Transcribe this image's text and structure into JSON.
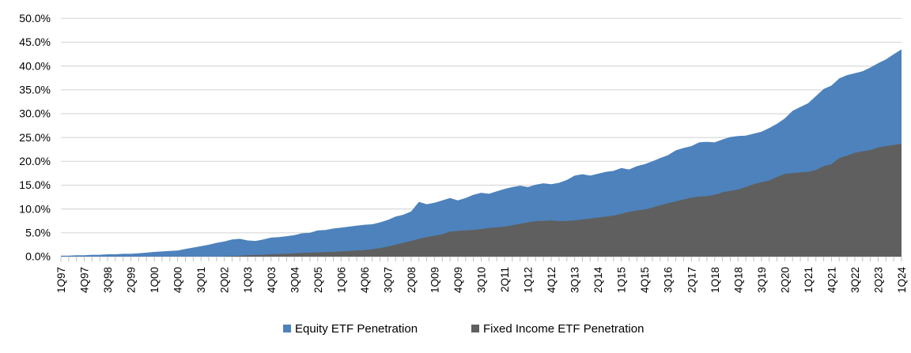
{
  "chart_data": {
    "type": "area",
    "overlay": true,
    "title": "",
    "xlabel": "",
    "ylabel": "",
    "legend_position": "bottom",
    "grid": true,
    "y_axis": {
      "min": 0,
      "max": 50,
      "step": 5,
      "tick_labels_top_down": [
        "50.0%",
        "45.0%",
        "40.0%",
        "35.0%",
        "30.0%",
        "25.0%",
        "20.0%",
        "15.0%",
        "10.0%",
        "5.0%",
        "0.0%"
      ]
    },
    "x_tick_labels": [
      "1Q97",
      "4Q97",
      "3Q98",
      "2Q99",
      "1Q00",
      "4Q00",
      "3Q01",
      "2Q02",
      "1Q03",
      "4Q03",
      "3Q04",
      "2Q05",
      "1Q06",
      "4Q06",
      "3Q07",
      "2Q08",
      "1Q09",
      "4Q09",
      "3Q10",
      "2Q11",
      "1Q12",
      "4Q12",
      "3Q13",
      "2Q14",
      "1Q15",
      "4Q15",
      "3Q16",
      "2Q17",
      "1Q18",
      "4Q18",
      "3Q19",
      "2Q20",
      "1Q21",
      "4Q21",
      "3Q22",
      "2Q23",
      "1Q24"
    ],
    "x_label_every_n": 3,
    "categories": [
      "1Q97",
      "2Q97",
      "3Q97",
      "4Q97",
      "1Q98",
      "2Q98",
      "3Q98",
      "4Q98",
      "1Q99",
      "2Q99",
      "3Q99",
      "4Q99",
      "1Q00",
      "2Q00",
      "3Q00",
      "4Q00",
      "1Q01",
      "2Q01",
      "3Q01",
      "4Q01",
      "1Q02",
      "2Q02",
      "3Q02",
      "4Q02",
      "1Q03",
      "2Q03",
      "3Q03",
      "4Q03",
      "1Q04",
      "2Q04",
      "3Q04",
      "4Q04",
      "1Q05",
      "2Q05",
      "3Q05",
      "4Q05",
      "1Q06",
      "2Q06",
      "3Q06",
      "4Q06",
      "1Q07",
      "2Q07",
      "3Q07",
      "4Q07",
      "1Q08",
      "2Q08",
      "3Q08",
      "4Q08",
      "1Q09",
      "2Q09",
      "3Q09",
      "4Q09",
      "1Q10",
      "2Q10",
      "3Q10",
      "4Q10",
      "1Q11",
      "2Q11",
      "3Q11",
      "4Q11",
      "1Q12",
      "2Q12",
      "3Q12",
      "4Q12",
      "1Q13",
      "2Q13",
      "3Q13",
      "4Q13",
      "1Q14",
      "2Q14",
      "3Q14",
      "4Q14",
      "1Q15",
      "2Q15",
      "3Q15",
      "4Q15",
      "1Q16",
      "2Q16",
      "3Q16",
      "4Q16",
      "1Q17",
      "2Q17",
      "3Q17",
      "4Q17",
      "1Q18",
      "2Q18",
      "3Q18",
      "4Q18",
      "1Q19",
      "2Q19",
      "3Q19",
      "4Q19",
      "1Q20",
      "2Q20",
      "3Q20",
      "4Q20",
      "1Q21",
      "2Q21",
      "3Q21",
      "4Q21",
      "1Q22",
      "2Q22",
      "3Q22",
      "4Q22",
      "1Q23",
      "2Q23",
      "3Q23",
      "4Q23",
      "1Q24"
    ],
    "series": [
      {
        "name": "Equity ETF Penetration",
        "color": "#4d82bc",
        "values": [
          0.2,
          0.2,
          0.3,
          0.3,
          0.4,
          0.4,
          0.5,
          0.5,
          0.6,
          0.6,
          0.7,
          0.85,
          1.0,
          1.1,
          1.2,
          1.3,
          1.6,
          1.9,
          2.2,
          2.5,
          2.9,
          3.2,
          3.6,
          3.75,
          3.4,
          3.3,
          3.6,
          4.0,
          4.1,
          4.3,
          4.5,
          4.9,
          5.0,
          5.5,
          5.6,
          5.9,
          6.1,
          6.3,
          6.5,
          6.7,
          6.8,
          7.2,
          7.7,
          8.4,
          8.8,
          9.5,
          11.5,
          11.0,
          11.3,
          11.8,
          12.3,
          11.8,
          12.3,
          13.0,
          13.4,
          13.2,
          13.7,
          14.2,
          14.6,
          14.9,
          14.6,
          15.1,
          15.4,
          15.2,
          15.5,
          16.1,
          17.0,
          17.3,
          17.0,
          17.4,
          17.8,
          18.0,
          18.6,
          18.3,
          19.0,
          19.4,
          20.0,
          20.7,
          21.3,
          22.3,
          22.8,
          23.2,
          24.0,
          24.1,
          24.0,
          24.6,
          25.1,
          25.3,
          25.4,
          25.8,
          26.2,
          27.0,
          27.9,
          29.0,
          30.6,
          31.4,
          32.2,
          33.7,
          35.2,
          35.9,
          37.4,
          38.1,
          38.5,
          38.9,
          39.7,
          40.6,
          41.4,
          42.5,
          43.5
        ]
      },
      {
        "name": "Fixed Income ETF Penetration",
        "color": "#5f5f5f",
        "values": [
          0,
          0,
          0,
          0,
          0,
          0,
          0,
          0,
          0,
          0,
          0,
          0,
          0,
          0,
          0,
          0,
          0,
          0,
          0,
          0,
          0,
          0.05,
          0.1,
          0.2,
          0.3,
          0.35,
          0.4,
          0.5,
          0.55,
          0.6,
          0.7,
          0.8,
          0.85,
          0.9,
          0.95,
          1.0,
          1.1,
          1.2,
          1.3,
          1.4,
          1.55,
          1.8,
          2.1,
          2.5,
          2.9,
          3.3,
          3.75,
          4.1,
          4.4,
          4.7,
          5.25,
          5.4,
          5.5,
          5.6,
          5.8,
          6.0,
          6.15,
          6.3,
          6.6,
          6.9,
          7.2,
          7.45,
          7.5,
          7.6,
          7.45,
          7.5,
          7.6,
          7.8,
          8.0,
          8.2,
          8.4,
          8.6,
          9.0,
          9.4,
          9.7,
          9.9,
          10.3,
          10.8,
          11.2,
          11.6,
          12.0,
          12.4,
          12.6,
          12.7,
          13.0,
          13.5,
          13.8,
          14.1,
          14.6,
          15.2,
          15.6,
          16.0,
          16.7,
          17.4,
          17.5,
          17.7,
          17.8,
          18.2,
          19.0,
          19.4,
          20.7,
          21.2,
          21.8,
          22.1,
          22.35,
          22.9,
          23.2,
          23.45,
          23.7
        ]
      }
    ]
  },
  "style": {
    "gridline_color": "#d9d9d9",
    "axis_line_color": "#d9d9d9",
    "tick_mark_color": "#bfbfbf",
    "text_color": "#000000",
    "background_color": "#ffffff"
  }
}
